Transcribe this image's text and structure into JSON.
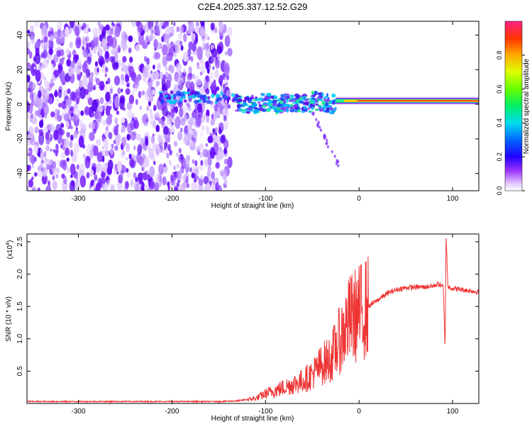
{
  "title": "C2E4.2025.337.12.52.G29",
  "chart_data": [
    {
      "type": "heatmap",
      "title": "C2E4.2025.337.12.52.G29",
      "xlabel": "Height of straight line (km)",
      "ylabel": "Frequency (Hz)",
      "xlim": [
        -355,
        128
      ],
      "ylim": [
        -50,
        48
      ],
      "xticks": [
        {
          "value": -300,
          "label": "-300"
        },
        {
          "value": -200,
          "label": "-200"
        },
        {
          "value": -100,
          "label": "-100"
        },
        {
          "value": 0,
          "label": "0"
        },
        {
          "value": 100,
          "label": "100"
        }
      ],
      "yticks": [
        {
          "value": -40,
          "label": "-40"
        },
        {
          "value": -20,
          "label": "-20"
        },
        {
          "value": 0,
          "label": "0"
        },
        {
          "value": 20,
          "label": "20"
        },
        {
          "value": 40,
          "label": "40"
        }
      ],
      "colorbar": {
        "label": "Normalized spectral amplitude",
        "range": [
          0,
          1
        ],
        "ticks": [
          {
            "value": 0.0,
            "label": "0.0"
          },
          {
            "value": 0.2,
            "label": "0.2"
          },
          {
            "value": 0.4,
            "label": "0.4"
          },
          {
            "value": 0.6,
            "label": "0.6"
          },
          {
            "value": 0.8,
            "label": "0.8"
          }
        ]
      },
      "regions": [
        {
          "name": "broadband-noise",
          "x_range": [
            -355,
            -138
          ],
          "freq_range": [
            -50,
            48
          ],
          "amplitude": 0.15
        },
        {
          "name": "trace-onset",
          "x_range": [
            -215,
            -130
          ],
          "freq_center": 4,
          "amplitude": 0.3
        },
        {
          "name": "wandering-trace",
          "x_range": [
            -130,
            -25
          ],
          "freq_center": 2,
          "freq_spread": 10,
          "amplitude": 0.45
        },
        {
          "name": "falling-branch",
          "x_range": [
            -50,
            -22
          ],
          "freq_range": [
            -5,
            -35
          ],
          "amplitude": 0.15
        },
        {
          "name": "stable-carrier",
          "x_range": [
            -25,
            128
          ],
          "freq_center": 2,
          "amplitude": 0.95
        }
      ]
    },
    {
      "type": "line",
      "xlabel": "Height of straight line (km)",
      "ylabel": "SNR (10 * v/v)",
      "y_multiplier_label": "(x10",
      "y_multiplier_exponent": "4",
      "y_multiplier_close": ")",
      "xlim": [
        -355,
        128
      ],
      "ylim": [
        0,
        2.62
      ],
      "color": "#ee3333",
      "xticks": [
        {
          "value": -300,
          "label": "-300"
        },
        {
          "value": -200,
          "label": "-200"
        },
        {
          "value": -100,
          "label": "-100"
        },
        {
          "value": 0,
          "label": "0"
        },
        {
          "value": 100,
          "label": "100"
        }
      ],
      "yticks": [
        {
          "value": 0.5,
          "label": "0.5"
        },
        {
          "value": 1.0,
          "label": "1.0"
        },
        {
          "value": 1.5,
          "label": "1.5"
        },
        {
          "value": 2.0,
          "label": "2.0"
        },
        {
          "value": 2.5,
          "label": "2.5"
        }
      ],
      "series": [
        {
          "name": "SNR",
          "x": [
            -355,
            -300,
            -250,
            -200,
            -150,
            -130,
            -110,
            -100,
            -80,
            -60,
            -50,
            -40,
            -30,
            -20,
            -15,
            -10,
            0,
            10,
            20,
            30,
            40,
            50,
            60,
            70,
            80,
            85,
            90,
            92,
            93,
            95,
            100,
            110,
            120,
            128
          ],
          "values": [
            0.03,
            0.03,
            0.03,
            0.03,
            0.03,
            0.04,
            0.08,
            0.15,
            0.25,
            0.35,
            0.45,
            0.6,
            0.7,
            1.0,
            1.15,
            1.3,
            1.4,
            1.5,
            1.6,
            1.7,
            1.76,
            1.79,
            1.8,
            1.8,
            1.82,
            1.85,
            1.8,
            0.85,
            2.62,
            1.8,
            1.78,
            1.76,
            1.74,
            1.72
          ]
        }
      ]
    }
  ]
}
